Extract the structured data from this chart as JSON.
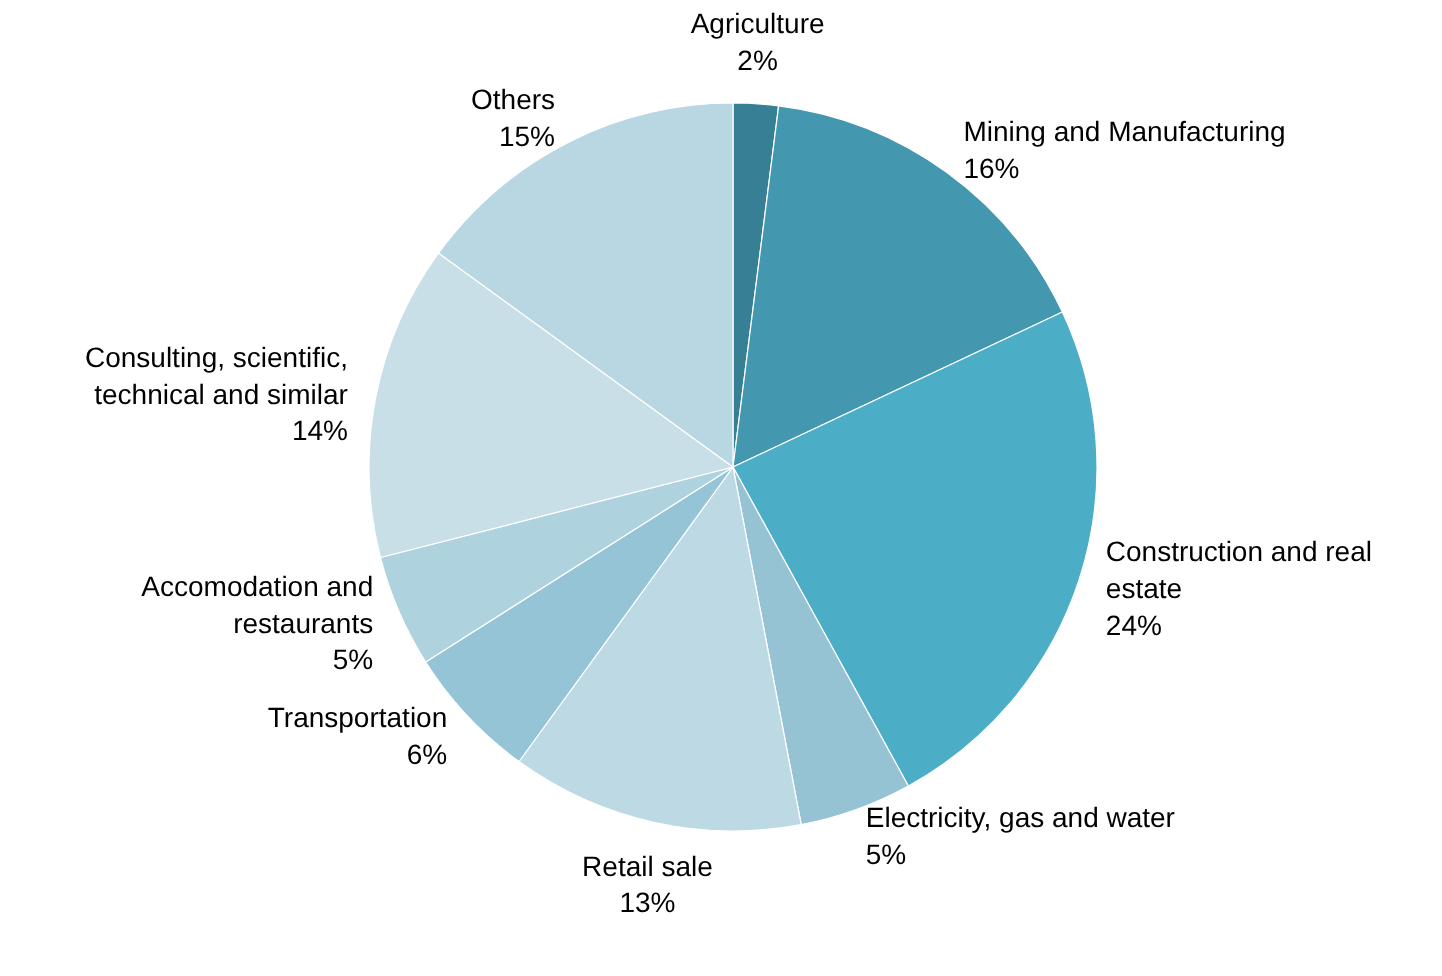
{
  "chart_data": {
    "type": "pie",
    "categories": [
      "Agriculture",
      "Mining and Manufacturing",
      "Construction and real estate",
      "Electricity, gas and water",
      "Retail sale",
      "Transportation",
      "Accomodation and restaurants",
      "Consulting, scientific, technical and similar",
      "Others"
    ],
    "values": [
      2,
      16,
      24,
      5,
      13,
      6,
      5,
      14,
      15
    ],
    "value_labels": [
      "2%",
      "16%",
      "24%",
      "5%",
      "13%",
      "6%",
      "5%",
      "14%",
      "15%"
    ],
    "colors": [
      "#367f95",
      "#4398b0",
      "#4badc6",
      "#96c3d4",
      "#bdd9e4",
      "#94c4d5",
      "#afd2df",
      "#c9dfe7",
      "#b9d7e2"
    ]
  }
}
